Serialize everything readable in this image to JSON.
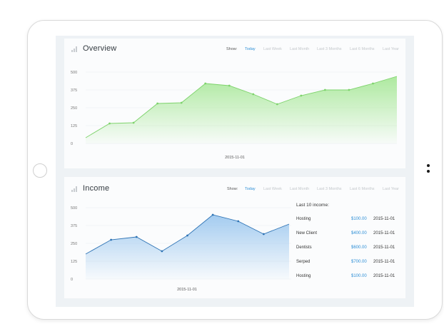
{
  "overview": {
    "title": "Overview",
    "filters": {
      "show_label": "Show:",
      "options": [
        "Today",
        "Last Week",
        "Last Month",
        "Last 3 Months",
        "Last 6 Months",
        "Last Year"
      ],
      "active": "Today"
    }
  },
  "income": {
    "title": "Income",
    "filters": {
      "show_label": "Show:",
      "options": [
        "Today",
        "Last Week",
        "Last Month",
        "Last 3 Months",
        "Last 6 Months",
        "Last Year"
      ],
      "active": "Today"
    },
    "list": {
      "heading": "Last 10 income:",
      "rows": [
        {
          "name": "Hosting",
          "amount": "$100.00",
          "date": "2015-11-01"
        },
        {
          "name": "New Client",
          "amount": "$400.00",
          "date": "2015-11-01"
        },
        {
          "name": "Dentists",
          "amount": "$600.00",
          "date": "2015-11-01"
        },
        {
          "name": "Serped",
          "amount": "$700.00",
          "date": "2015-11-01"
        },
        {
          "name": "Hosting",
          "amount": "$100.00",
          "date": "2015-11-01"
        }
      ]
    }
  },
  "colors": {
    "overview_line": "#7ed36c",
    "overview_fill_top": "#a9e89a",
    "income_line": "#2f74b5",
    "income_fill_top": "#9fc9ef",
    "accent": "#2e8fd6"
  },
  "chart_data": [
    {
      "type": "area",
      "title": "Overview",
      "xlabel": "2015-11-01",
      "ylim": [
        0,
        500
      ],
      "yticks": [
        0,
        125,
        250,
        375,
        500
      ],
      "x": [
        0,
        1,
        2,
        3,
        4,
        5,
        6,
        7,
        8,
        9,
        10,
        11,
        12,
        13
      ],
      "values": [
        40,
        140,
        145,
        280,
        285,
        420,
        405,
        345,
        275,
        335,
        375,
        375,
        420,
        470
      ],
      "grid": true
    },
    {
      "type": "area",
      "title": "Income",
      "xlabel": "2015-11-01",
      "ylim": [
        0,
        500
      ],
      "yticks": [
        0,
        125,
        250,
        375,
        500
      ],
      "x": [
        0,
        1,
        2,
        3,
        4,
        5,
        6,
        7,
        8
      ],
      "values": [
        175,
        275,
        295,
        195,
        305,
        450,
        405,
        315,
        385
      ],
      "grid": true
    }
  ]
}
